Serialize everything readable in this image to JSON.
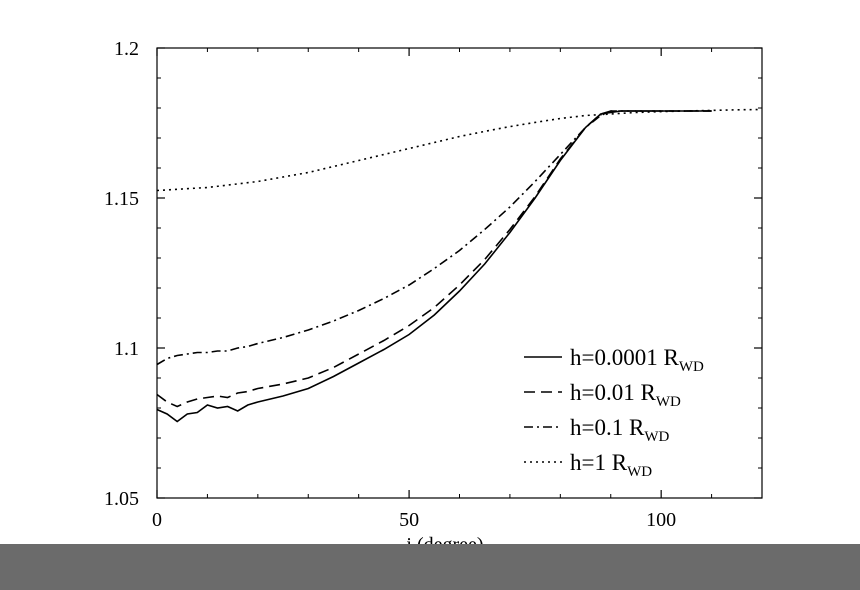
{
  "chart_data": {
    "type": "line",
    "title": "",
    "xlabel": "i (degree)",
    "ylabel": "",
    "xlim": [
      0,
      120
    ],
    "ylim": [
      1.05,
      1.2
    ],
    "xticks": [
      0,
      50,
      100
    ],
    "yticks": [
      1.05,
      1.1,
      1.15,
      1.2
    ],
    "xtick_labels": [
      "0",
      "50",
      "100"
    ],
    "ytick_labels": [
      "1.05",
      "1.1",
      "1.15",
      "1.2"
    ],
    "grid": false,
    "legend_position": "lower-right",
    "series": [
      {
        "name": "h=0.0001 R",
        "name_main": "h=0.0001 R",
        "name_sub": "WD",
        "style": "solid",
        "x": [
          0,
          2,
          4,
          6,
          8,
          10,
          12,
          14,
          16,
          18,
          20,
          25,
          30,
          35,
          40,
          45,
          50,
          55,
          60,
          65,
          70,
          75,
          80,
          85,
          88,
          90,
          92,
          95,
          100,
          105,
          110
        ],
        "y": [
          1.0795,
          1.078,
          1.0755,
          1.078,
          1.0785,
          1.081,
          1.08,
          1.0805,
          1.079,
          1.081,
          1.082,
          1.084,
          1.0865,
          1.0905,
          1.095,
          1.0995,
          1.1045,
          1.111,
          1.119,
          1.128,
          1.1385,
          1.15,
          1.1625,
          1.1735,
          1.178,
          1.1785,
          1.179,
          1.179,
          1.179,
          1.179,
          1.179
        ]
      },
      {
        "name": "h=0.01 R",
        "name_main": "h=0.01 R",
        "name_sub": "WD",
        "style": "dashed",
        "x": [
          0,
          2,
          4,
          6,
          8,
          10,
          12,
          14,
          16,
          18,
          20,
          25,
          30,
          35,
          40,
          45,
          50,
          55,
          60,
          65,
          70,
          75,
          80,
          85,
          88,
          90,
          92,
          95,
          100,
          105,
          110
        ],
        "y": [
          1.0845,
          1.082,
          1.0805,
          1.082,
          1.083,
          1.0835,
          1.084,
          1.0835,
          1.085,
          1.0855,
          1.0865,
          1.088,
          1.09,
          1.0935,
          1.098,
          1.1025,
          1.1075,
          1.1135,
          1.121,
          1.1295,
          1.1395,
          1.1505,
          1.163,
          1.1735,
          1.178,
          1.179,
          1.179,
          1.179,
          1.179,
          1.179,
          1.179
        ]
      },
      {
        "name": "h=0.1 R",
        "name_main": "h=0.1 R",
        "name_sub": "WD",
        "style": "dashdot",
        "x": [
          0,
          2,
          4,
          6,
          8,
          10,
          12,
          14,
          16,
          18,
          20,
          25,
          30,
          35,
          40,
          45,
          50,
          55,
          60,
          65,
          70,
          75,
          80,
          85,
          88,
          90,
          92,
          95,
          100,
          105,
          110
        ],
        "y": [
          1.0945,
          1.0965,
          1.0975,
          1.098,
          1.0985,
          1.0985,
          1.099,
          1.099,
          1.1,
          1.1005,
          1.1015,
          1.1035,
          1.106,
          1.109,
          1.1125,
          1.1165,
          1.121,
          1.1265,
          1.1325,
          1.1395,
          1.147,
          1.1555,
          1.1645,
          1.1735,
          1.1775,
          1.179,
          1.179,
          1.179,
          1.179,
          1.179,
          1.179
        ]
      },
      {
        "name": "h=1 R",
        "name_main": "h=1 R",
        "name_sub": "WD",
        "style": "dotted",
        "x": [
          0,
          5,
          10,
          15,
          20,
          25,
          30,
          35,
          40,
          45,
          50,
          55,
          60,
          65,
          70,
          75,
          80,
          85,
          90,
          95,
          100,
          105,
          110,
          115,
          120
        ],
        "y": [
          1.1525,
          1.153,
          1.1535,
          1.1545,
          1.1555,
          1.157,
          1.1585,
          1.1605,
          1.1625,
          1.1645,
          1.1665,
          1.1685,
          1.1705,
          1.1722,
          1.1738,
          1.1752,
          1.1765,
          1.1775,
          1.178,
          1.1785,
          1.1788,
          1.179,
          1.1792,
          1.1794,
          1.1795
        ]
      }
    ]
  }
}
